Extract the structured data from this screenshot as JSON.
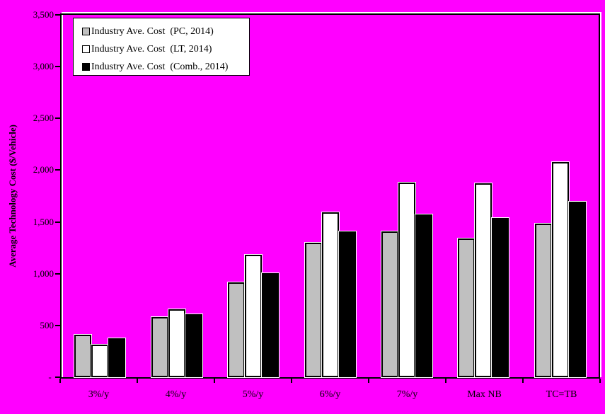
{
  "chart_data": {
    "type": "bar",
    "title": "",
    "xlabel": "",
    "ylabel": "Average Technology Cost ($/Vehicle)",
    "categories": [
      "3%/y",
      "4%/y",
      "5%/y",
      "6%/y",
      "7%/y",
      "Max NB",
      "TC=TB"
    ],
    "series": [
      {
        "name": "Industry Ave. Cost  (PC, 2014)",
        "color": "#c0c0c0",
        "values": [
          410,
          580,
          915,
          1300,
          1410,
          1340,
          1480
        ]
      },
      {
        "name": "Industry Ave. Cost  (LT, 2014)",
        "color": "#ffffff",
        "values": [
          315,
          655,
          1180,
          1590,
          1880,
          1875,
          2080
        ]
      },
      {
        "name": "Industry Ave. Cost  (Comb., 2014)",
        "color": "#000000",
        "values": [
          375,
          610,
          1005,
          1405,
          1575,
          1535,
          1695
        ]
      }
    ],
    "ylim": [
      0,
      3500
    ],
    "ytick_interval": 500,
    "ytick_labels": [
      "- ",
      "500",
      "1,000",
      "1,500",
      "2,000",
      "2,500",
      "3,000",
      "3,500"
    ],
    "grid": false,
    "legend_position": "top-left",
    "background": "#ff00ff",
    "bar_border_color": "#000000"
  }
}
